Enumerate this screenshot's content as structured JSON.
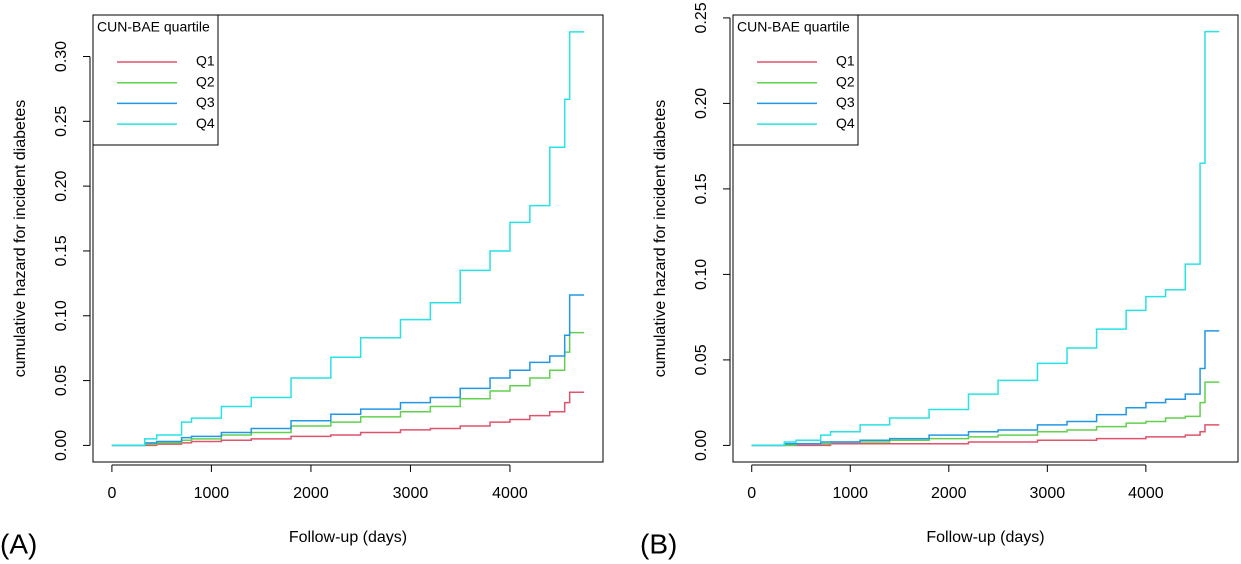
{
  "chart_data": [
    {
      "type": "step",
      "label": "(A)",
      "xlabel": "Follow-up (days)",
      "ylabel": "cumulative hazard for incident diabetes",
      "legend_title": "CUN-BAE quartile",
      "legend": "top-left",
      "xlim": [
        -190,
        4935
      ],
      "ylim": [
        -0.0128,
        0.332
      ],
      "xticks": [
        0,
        1000,
        2000,
        3000,
        4000
      ],
      "yticks": [
        {
          "value": 0,
          "label": "0.00"
        },
        0.05,
        {
          "value": 0.1,
          "label": "0.10"
        },
        0.15,
        {
          "value": 0.2,
          "label": "0.20"
        },
        0.25,
        {
          "value": 0.3,
          "label": "0.30"
        }
      ],
      "x": [
        0,
        330,
        450,
        700,
        800,
        1100,
        1400,
        1800,
        2200,
        2500,
        2900,
        3200,
        3500,
        3800,
        4000,
        4200,
        4400,
        4550,
        4600,
        4745
      ],
      "series": [
        {
          "name": "Q1",
          "color": "#DF536B",
          "values": [
            0,
            0,
            0.001,
            0.002,
            0.003,
            0.004,
            0.005,
            0.007,
            0.008,
            0.01,
            0.012,
            0.013,
            0.015,
            0.018,
            0.02,
            0.023,
            0.026,
            0.033,
            0.041,
            0.041
          ]
        },
        {
          "name": "Q2",
          "color": "#61D04F",
          "values": [
            0,
            0.001,
            0.002,
            0.004,
            0.005,
            0.008,
            0.01,
            0.015,
            0.018,
            0.022,
            0.026,
            0.03,
            0.036,
            0.042,
            0.046,
            0.052,
            0.058,
            0.072,
            0.087,
            0.087
          ]
        },
        {
          "name": "Q3",
          "color": "#2297E6",
          "values": [
            0,
            0.002,
            0.003,
            0.006,
            0.007,
            0.01,
            0.013,
            0.019,
            0.024,
            0.028,
            0.033,
            0.037,
            0.044,
            0.052,
            0.058,
            0.064,
            0.069,
            0.085,
            0.116,
            0.116
          ]
        },
        {
          "name": "Q4",
          "color": "#28E2E5",
          "values": [
            0,
            0.005,
            0.008,
            0.018,
            0.021,
            0.03,
            0.037,
            0.052,
            0.068,
            0.083,
            0.097,
            0.11,
            0.135,
            0.15,
            0.172,
            0.185,
            0.23,
            0.267,
            0.319,
            0.319
          ]
        }
      ]
    },
    {
      "type": "step",
      "label": "(B)",
      "xlabel": "Follow-up (days)",
      "ylabel": "cumulative hazard for incident diabetes",
      "legend_title": "CUN-BAE quartile",
      "legend": "top-left",
      "xlim": [
        -190,
        4935
      ],
      "ylim": [
        -0.0097,
        0.2517
      ],
      "xticks": [
        0,
        1000,
        2000,
        3000,
        4000
      ],
      "yticks": [
        {
          "value": 0,
          "label": "0.00"
        },
        0.05,
        {
          "value": 0.1,
          "label": "0.10"
        },
        0.15,
        {
          "value": 0.2,
          "label": "0.20"
        },
        0.25
      ],
      "x": [
        0,
        330,
        450,
        700,
        800,
        1100,
        1400,
        1800,
        2200,
        2500,
        2900,
        3200,
        3500,
        3800,
        4000,
        4200,
        4400,
        4550,
        4600,
        4745
      ],
      "series": [
        {
          "name": "Q1",
          "color": "#DF536B",
          "values": [
            0,
            0,
            0,
            0,
            0.001,
            0.001,
            0.001,
            0.001,
            0.002,
            0.002,
            0.003,
            0.003,
            0.004,
            0.004,
            0.005,
            0.005,
            0.006,
            0.008,
            0.012,
            0.012
          ]
        },
        {
          "name": "Q2",
          "color": "#61D04F",
          "values": [
            0,
            0,
            0.001,
            0.001,
            0.002,
            0.002,
            0.003,
            0.004,
            0.005,
            0.006,
            0.008,
            0.009,
            0.011,
            0.013,
            0.014,
            0.016,
            0.017,
            0.025,
            0.037,
            0.037
          ]
        },
        {
          "name": "Q3",
          "color": "#2297E6",
          "values": [
            0,
            0.001,
            0.001,
            0.002,
            0.002,
            0.003,
            0.004,
            0.006,
            0.008,
            0.009,
            0.012,
            0.014,
            0.018,
            0.022,
            0.025,
            0.027,
            0.03,
            0.045,
            0.067,
            0.067
          ]
        },
        {
          "name": "Q4",
          "color": "#28E2E5",
          "values": [
            0,
            0.002,
            0.003,
            0.006,
            0.008,
            0.012,
            0.016,
            0.021,
            0.03,
            0.038,
            0.048,
            0.057,
            0.068,
            0.079,
            0.087,
            0.091,
            0.106,
            0.165,
            0.242,
            0.242
          ]
        }
      ]
    }
  ]
}
